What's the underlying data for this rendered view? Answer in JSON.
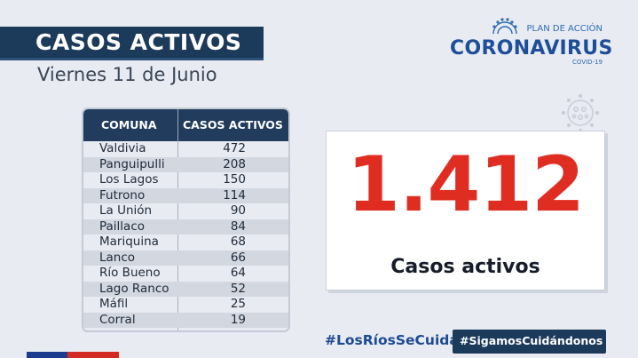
{
  "header": {
    "title": "CASOS ACTIVOS",
    "date": "Viernes 11 de Junio"
  },
  "logo": {
    "plan": "PLAN DE ACCIÓN",
    "name": "CORONAVIRUS",
    "sub": "COVID-19"
  },
  "table": {
    "columns": [
      "COMUNA",
      "CASOS ACTIVOS"
    ],
    "rows": [
      {
        "comuna": "Valdivia",
        "casos": "472"
      },
      {
        "comuna": "Panguipulli",
        "casos": "208"
      },
      {
        "comuna": "Los Lagos",
        "casos": "150"
      },
      {
        "comuna": "Futrono",
        "casos": "114"
      },
      {
        "comuna": "La Unión",
        "casos": "90"
      },
      {
        "comuna": "Paillaco",
        "casos": "84"
      },
      {
        "comuna": "Mariquina",
        "casos": "68"
      },
      {
        "comuna": "Lanco",
        "casos": "66"
      },
      {
        "comuna": "Río Bueno",
        "casos": "64"
      },
      {
        "comuna": "Lago Ranco",
        "casos": "52"
      },
      {
        "comuna": "Máfil",
        "casos": "25"
      },
      {
        "comuna": "Corral",
        "casos": "19"
      }
    ]
  },
  "total": {
    "value": "1.412",
    "label": "Casos activos"
  },
  "footer": {
    "hashtag1": "#LosRíosSeCuida",
    "hashtag2": "#SigamosCuidándonos"
  },
  "colors": {
    "navy": "#1c3a5a",
    "red": "#e02d22",
    "blue": "#1e4e9a",
    "background": "#e9ebf2"
  }
}
